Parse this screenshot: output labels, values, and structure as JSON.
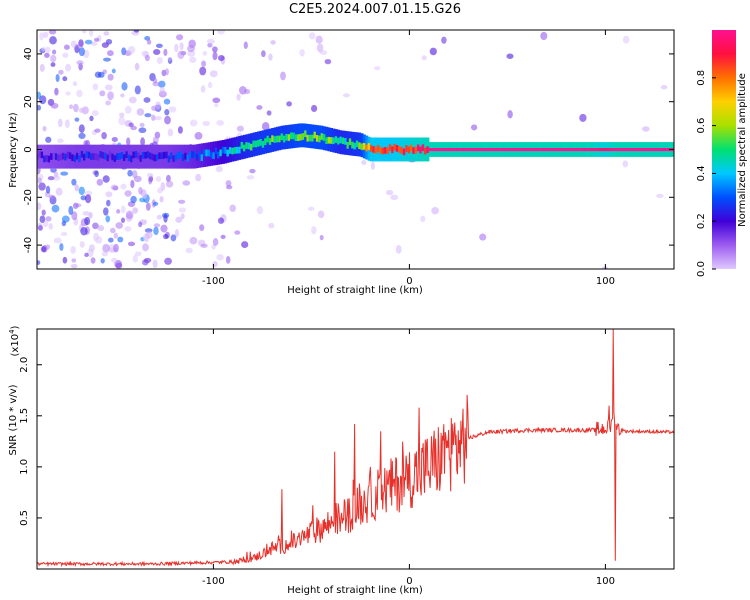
{
  "title": "C2E5.2024.007.01.15.G26",
  "chart_data": [
    {
      "type": "heatmap",
      "name": "spectrogram",
      "xlabel": "Height of straight line (km)",
      "ylabel": "Frequency (Hz)",
      "xlim": [
        -190,
        135
      ],
      "ylim": [
        -50,
        50
      ],
      "xticks": [
        -100,
        0,
        100
      ],
      "yticks": [
        -40,
        -20,
        0,
        20,
        40
      ],
      "colorbar": {
        "label": "Normalized spectral amplitude",
        "range": [
          0.0,
          1.0
        ],
        "ticks": [
          0.0,
          0.2,
          0.4,
          0.6,
          0.8
        ],
        "colormap": [
          "#e0c8ff",
          "#9c5cf0",
          "#3f00d8",
          "#0050ff",
          "#00c8ff",
          "#00e070",
          "#a8e000",
          "#ffd000",
          "#ff7000",
          "#ff1040",
          "#ff1090"
        ]
      },
      "ridge": {
        "x": [
          -190,
          -170,
          -150,
          -125,
          -110,
          -95,
          -85,
          -75,
          -65,
          -55,
          -45,
          -35,
          -25,
          -20,
          -10,
          0,
          10,
          30,
          60,
          90,
          100,
          105,
          135
        ],
        "frequency": [
          -3,
          -3,
          -3,
          -3,
          -3,
          -1,
          1,
          3,
          5,
          6,
          5,
          3,
          2,
          0,
          0,
          0,
          0,
          0,
          0,
          0,
          0,
          0,
          0
        ],
        "amplitude": [
          0.25,
          0.3,
          0.3,
          0.3,
          0.35,
          0.45,
          0.55,
          0.6,
          0.6,
          0.65,
          0.65,
          0.55,
          0.6,
          0.9,
          0.9,
          0.95,
          1.0,
          1.0,
          1.0,
          1.0,
          0.95,
          1.0,
          1.0
        ]
      }
    },
    {
      "type": "line",
      "name": "snr",
      "xlabel": "Height of straight line (km)",
      "ylabel": "SNR (10 * v/v)",
      "yexponent_label": "(x10",
      "yexponent_power": "4",
      "yexponent_close": ")",
      "xlim": [
        -190,
        135
      ],
      "ylim": [
        0.0,
        2.35
      ],
      "xticks": [
        -100,
        0,
        100
      ],
      "yticks": [
        0.5,
        1.0,
        1.5,
        2.0
      ],
      "color": "#e8302a",
      "envelope": {
        "x": [
          -190,
          -130,
          -110,
          -90,
          -80,
          -70,
          -60,
          -50,
          -40,
          -30,
          -20,
          -10,
          0,
          10,
          20,
          30,
          40,
          60,
          80,
          95,
          100,
          103,
          104,
          106,
          110,
          135
        ],
        "y": [
          0.05,
          0.05,
          0.06,
          0.07,
          0.1,
          0.2,
          0.25,
          0.35,
          0.45,
          0.55,
          0.7,
          0.8,
          0.9,
          1.0,
          1.15,
          1.28,
          1.34,
          1.36,
          1.36,
          1.36,
          1.38,
          1.4,
          1.5,
          1.38,
          1.35,
          1.34
        ]
      },
      "spikes": [
        {
          "x": -65,
          "y": 0.78
        },
        {
          "x": -38,
          "y": 1.15
        },
        {
          "x": -28,
          "y": 1.42
        },
        {
          "x": -20,
          "y": 1.0
        },
        {
          "x": 5,
          "y": 1.58
        },
        {
          "x": 102,
          "y": 1.6
        },
        {
          "x": 104,
          "y": 2.35
        },
        {
          "x": 105,
          "y": 0.08
        }
      ]
    }
  ]
}
